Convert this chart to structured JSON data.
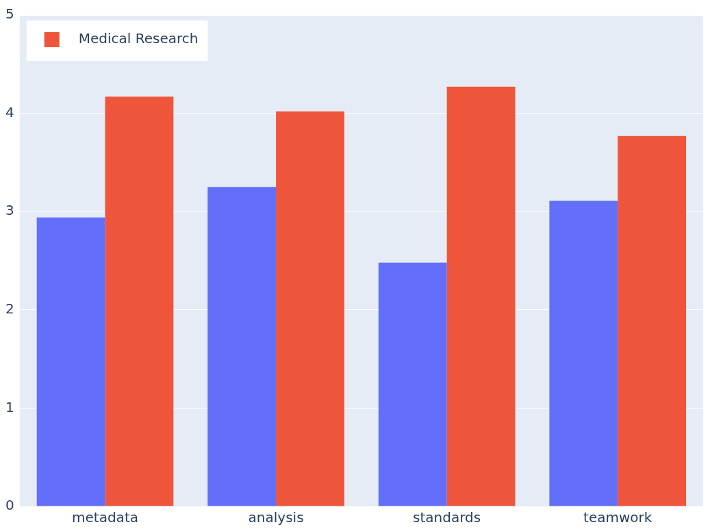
{
  "chart_data": {
    "type": "bar",
    "categories": [
      "metadata",
      "analysis",
      "standards",
      "teamwork"
    ],
    "series": [
      {
        "color": "#636efa",
        "values": [
          2.94,
          3.25,
          2.48,
          3.11
        ]
      },
      {
        "name": "Medical Research",
        "color": "#ef553b",
        "values": [
          4.17,
          4.02,
          4.27,
          3.77
        ]
      }
    ],
    "ylim": [
      0,
      5
    ],
    "yticks": [
      0,
      1,
      2,
      3,
      4,
      5
    ],
    "grid": "y",
    "legend": "top left"
  }
}
